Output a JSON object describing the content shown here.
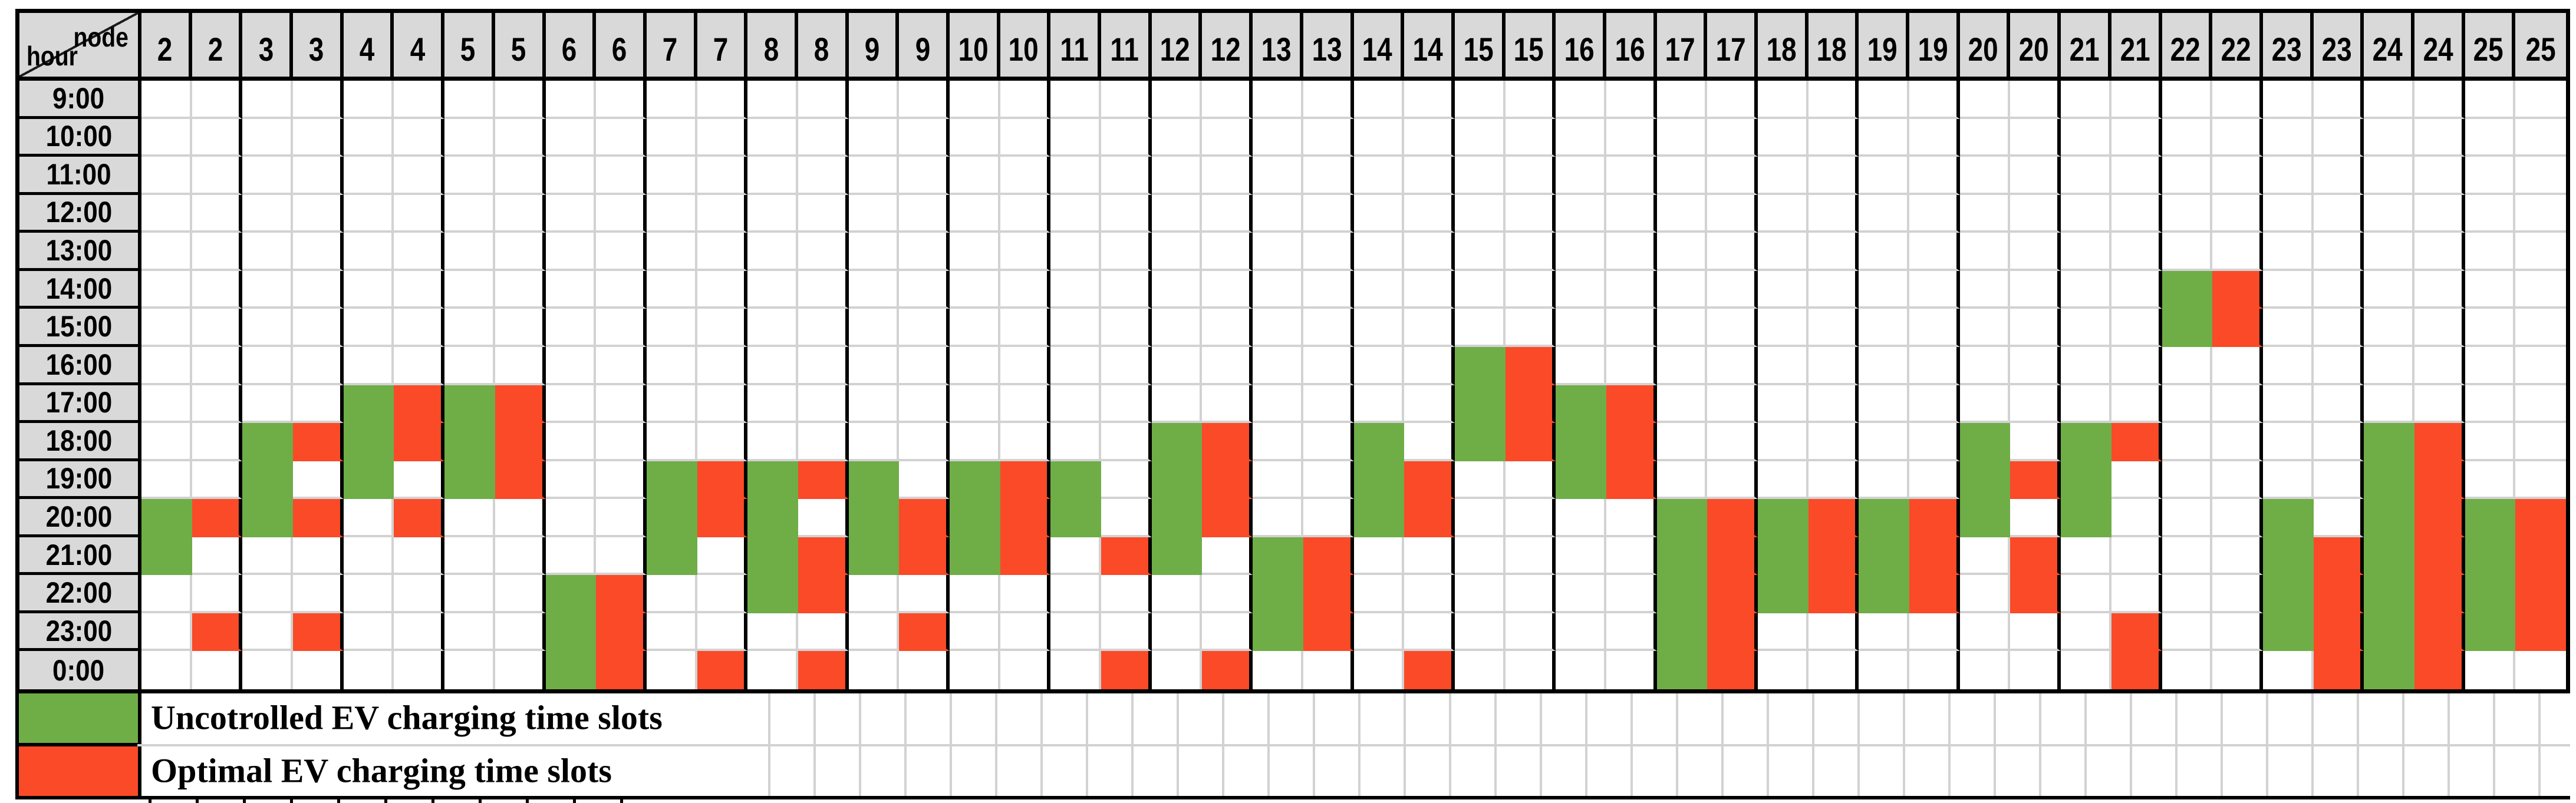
{
  "chart_data": {
    "type": "heatmap",
    "corner": {
      "top_label": "node",
      "bottom_label": "hour"
    },
    "hours": [
      "9:00",
      "10:00",
      "11:00",
      "12:00",
      "13:00",
      "14:00",
      "15:00",
      "16:00",
      "17:00",
      "18:00",
      "19:00",
      "20:00",
      "21:00",
      "22:00",
      "23:00",
      "0:00"
    ],
    "series": [
      {
        "node": 2,
        "uncontrolled": [
          "20:00",
          "21:00"
        ],
        "optimal": [
          "20:00",
          "23:00"
        ]
      },
      {
        "node": 3,
        "uncontrolled": [
          "18:00",
          "19:00",
          "20:00"
        ],
        "optimal": [
          "18:00",
          "20:00",
          "23:00"
        ]
      },
      {
        "node": 4,
        "uncontrolled": [
          "17:00",
          "18:00",
          "19:00"
        ],
        "optimal": [
          "17:00",
          "18:00",
          "20:00"
        ]
      },
      {
        "node": 5,
        "uncontrolled": [
          "17:00",
          "18:00",
          "19:00"
        ],
        "optimal": [
          "17:00",
          "18:00",
          "19:00"
        ]
      },
      {
        "node": 6,
        "uncontrolled": [
          "22:00",
          "23:00",
          "0:00"
        ],
        "optimal": [
          "22:00",
          "23:00",
          "0:00"
        ]
      },
      {
        "node": 7,
        "uncontrolled": [
          "19:00",
          "20:00",
          "21:00"
        ],
        "optimal": [
          "19:00",
          "20:00",
          "0:00"
        ]
      },
      {
        "node": 8,
        "uncontrolled": [
          "19:00",
          "20:00",
          "21:00",
          "22:00"
        ],
        "optimal": [
          "19:00",
          "21:00",
          "22:00",
          "0:00"
        ]
      },
      {
        "node": 9,
        "uncontrolled": [
          "19:00",
          "20:00",
          "21:00"
        ],
        "optimal": [
          "20:00",
          "21:00",
          "23:00"
        ]
      },
      {
        "node": 10,
        "uncontrolled": [
          "19:00",
          "20:00",
          "21:00"
        ],
        "optimal": [
          "19:00",
          "20:00",
          "21:00"
        ]
      },
      {
        "node": 11,
        "uncontrolled": [
          "19:00",
          "20:00"
        ],
        "optimal": [
          "21:00",
          "0:00"
        ]
      },
      {
        "node": 12,
        "uncontrolled": [
          "18:00",
          "19:00",
          "20:00",
          "21:00"
        ],
        "optimal": [
          "18:00",
          "19:00",
          "20:00",
          "0:00"
        ]
      },
      {
        "node": 13,
        "uncontrolled": [
          "21:00",
          "22:00",
          "23:00"
        ],
        "optimal": [
          "21:00",
          "22:00",
          "23:00"
        ]
      },
      {
        "node": 14,
        "uncontrolled": [
          "18:00",
          "19:00",
          "20:00"
        ],
        "optimal": [
          "19:00",
          "20:00",
          "0:00"
        ]
      },
      {
        "node": 15,
        "uncontrolled": [
          "16:00",
          "17:00",
          "18:00"
        ],
        "optimal": [
          "16:00",
          "17:00",
          "18:00"
        ]
      },
      {
        "node": 16,
        "uncontrolled": [
          "17:00",
          "18:00",
          "19:00"
        ],
        "optimal": [
          "17:00",
          "18:00",
          "19:00"
        ]
      },
      {
        "node": 17,
        "uncontrolled": [
          "20:00",
          "21:00",
          "22:00",
          "23:00",
          "0:00"
        ],
        "optimal": [
          "20:00",
          "21:00",
          "22:00",
          "23:00",
          "0:00"
        ]
      },
      {
        "node": 18,
        "uncontrolled": [
          "20:00",
          "21:00",
          "22:00"
        ],
        "optimal": [
          "20:00",
          "21:00",
          "22:00"
        ]
      },
      {
        "node": 19,
        "uncontrolled": [
          "20:00",
          "21:00",
          "22:00"
        ],
        "optimal": [
          "20:00",
          "21:00",
          "22:00"
        ]
      },
      {
        "node": 20,
        "uncontrolled": [
          "18:00",
          "19:00",
          "20:00"
        ],
        "optimal": [
          "19:00",
          "21:00",
          "22:00"
        ]
      },
      {
        "node": 21,
        "uncontrolled": [
          "18:00",
          "19:00",
          "20:00"
        ],
        "optimal": [
          "18:00",
          "23:00",
          "0:00"
        ]
      },
      {
        "node": 22,
        "uncontrolled": [
          "14:00",
          "15:00"
        ],
        "optimal": [
          "14:00",
          "15:00"
        ]
      },
      {
        "node": 23,
        "uncontrolled": [
          "20:00",
          "21:00",
          "22:00",
          "23:00"
        ],
        "optimal": [
          "21:00",
          "22:00",
          "23:00",
          "0:00"
        ]
      },
      {
        "node": 24,
        "uncontrolled": [
          "18:00",
          "19:00",
          "20:00",
          "21:00",
          "22:00",
          "23:00",
          "0:00"
        ],
        "optimal": [
          "18:00",
          "19:00",
          "20:00",
          "21:00",
          "22:00",
          "23:00",
          "0:00"
        ]
      },
      {
        "node": 25,
        "uncontrolled": [
          "20:00",
          "21:00",
          "22:00",
          "23:00"
        ],
        "optimal": [
          "20:00",
          "21:00",
          "22:00",
          "23:00"
        ]
      }
    ],
    "legend": [
      {
        "key": "uncontrolled",
        "label": "Uncotrolled EV charging time slots"
      },
      {
        "key": "optimal",
        "label": "Optimal EV charging time slots"
      }
    ],
    "colors": {
      "uncontrolled_green": "#6FAD47",
      "optimal_red": "#FA4A28",
      "header_background": "#D9D9D9",
      "grid_line": "#D2D2D2",
      "border_black": "#000000"
    },
    "layout": {
      "grid_on": true,
      "legend_position": "bottom-left"
    }
  }
}
